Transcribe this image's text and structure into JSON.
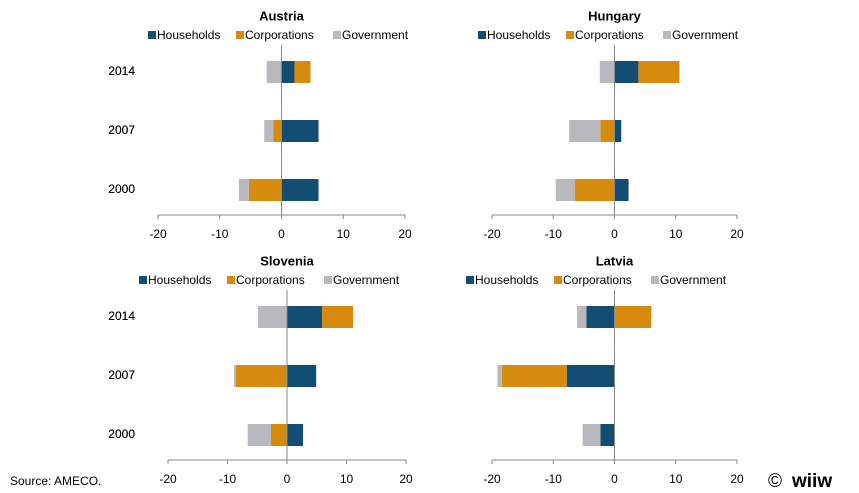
{
  "chart_data": [
    {
      "type": "bar",
      "orientation": "horizontal",
      "stacked": true,
      "title": "Austria",
      "categories": [
        "2014",
        "2007",
        "2000"
      ],
      "series": [
        {
          "name": "Households",
          "color": "#124e73",
          "values": [
            2.1,
            6.0,
            6.0
          ]
        },
        {
          "name": "Corporations",
          "color": "#d68b0e",
          "values": [
            2.6,
            -1.3,
            -5.3
          ]
        },
        {
          "name": "Government",
          "color": "#b9b9bd",
          "values": [
            -2.4,
            -1.5,
            -1.6
          ]
        }
      ],
      "xlim": [
        -20,
        20
      ],
      "xticks": [
        -20,
        -10,
        0,
        10,
        20
      ]
    },
    {
      "type": "bar",
      "orientation": "horizontal",
      "stacked": true,
      "title": "Hungary",
      "categories": [
        "2014",
        "2007",
        "2000"
      ],
      "series": [
        {
          "name": "Households",
          "color": "#124e73",
          "values": [
            3.9,
            1.1,
            2.3
          ]
        },
        {
          "name": "Corporations",
          "color": "#d68b0e",
          "values": [
            6.7,
            -2.3,
            -6.5
          ]
        },
        {
          "name": "Government",
          "color": "#b9b9bd",
          "values": [
            -2.4,
            -5.1,
            -3.1
          ]
        }
      ],
      "xlim": [
        -20,
        20
      ],
      "xticks": [
        -20,
        -10,
        0,
        10,
        20
      ]
    },
    {
      "type": "bar",
      "orientation": "horizontal",
      "stacked": true,
      "title": "Slovenia",
      "categories": [
        "2014",
        "2007",
        "2000"
      ],
      "series": [
        {
          "name": "Households",
          "color": "#124e73",
          "values": [
            5.9,
            4.9,
            2.7
          ]
        },
        {
          "name": "Corporations",
          "color": "#d68b0e",
          "values": [
            5.2,
            -8.6,
            -2.7
          ]
        },
        {
          "name": "Government",
          "color": "#b9b9bd",
          "values": [
            -4.9,
            -0.3,
            -3.9
          ]
        }
      ],
      "xlim": [
        -20,
        20
      ],
      "xticks": [
        -20,
        -10,
        0,
        10,
        20
      ]
    },
    {
      "type": "bar",
      "orientation": "horizontal",
      "stacked": true,
      "title": "Latvia",
      "categories": [
        "2014",
        "2007",
        "2000"
      ],
      "series": [
        {
          "name": "Households",
          "color": "#124e73",
          "values": [
            -4.6,
            -7.8,
            -2.3
          ]
        },
        {
          "name": "Corporations",
          "color": "#d68b0e",
          "values": [
            6.0,
            -10.6,
            0
          ]
        },
        {
          "name": "Government",
          "color": "#b9b9bd",
          "values": [
            -1.5,
            -0.7,
            -2.9
          ]
        }
      ],
      "xlim": [
        -20,
        20
      ],
      "xticks": [
        -20,
        -10,
        0,
        10,
        20
      ]
    }
  ],
  "source": "Source: AMECO.",
  "logo": "wiiw"
}
